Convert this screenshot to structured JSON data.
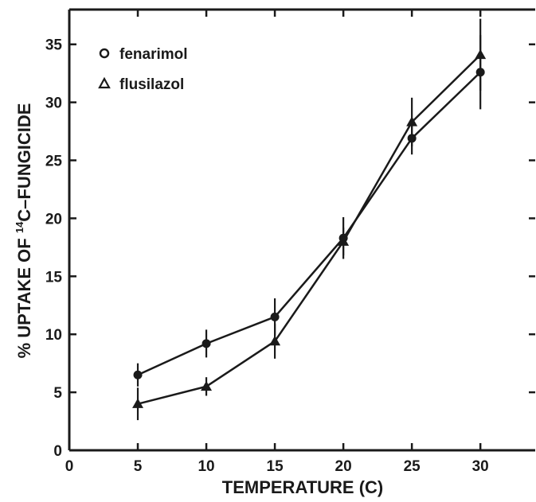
{
  "chart_data": {
    "type": "line",
    "xlabel": "TEMPERATURE (C)",
    "ylabel_prefix": "% UPTAKE OF ",
    "ylabel_sup": "14",
    "ylabel_suffix": "C–FUNGICIDE",
    "xlim": [
      0,
      34
    ],
    "ylim": [
      0,
      38
    ],
    "xticks": [
      0,
      5,
      10,
      15,
      20,
      25,
      30
    ],
    "yticks": [
      0,
      5,
      10,
      15,
      20,
      25,
      30,
      35
    ],
    "grid": false,
    "legend_placement": "top-left",
    "x": [
      5,
      10,
      15,
      20,
      25,
      30
    ],
    "series": [
      {
        "name": "fenarimol",
        "marker": "circle",
        "values": [
          6.5,
          9.2,
          11.5,
          18.3,
          26.9,
          32.6
        ],
        "error": [
          1.0,
          1.2,
          1.6,
          1.8,
          1.4,
          3.2
        ]
      },
      {
        "name": "flusilazol",
        "marker": "triangle",
        "values": [
          4.0,
          5.5,
          9.4,
          18.0,
          28.3,
          34.1
        ],
        "error": [
          1.4,
          0.8,
          1.5,
          1.2,
          2.1,
          3.1
        ]
      }
    ]
  }
}
